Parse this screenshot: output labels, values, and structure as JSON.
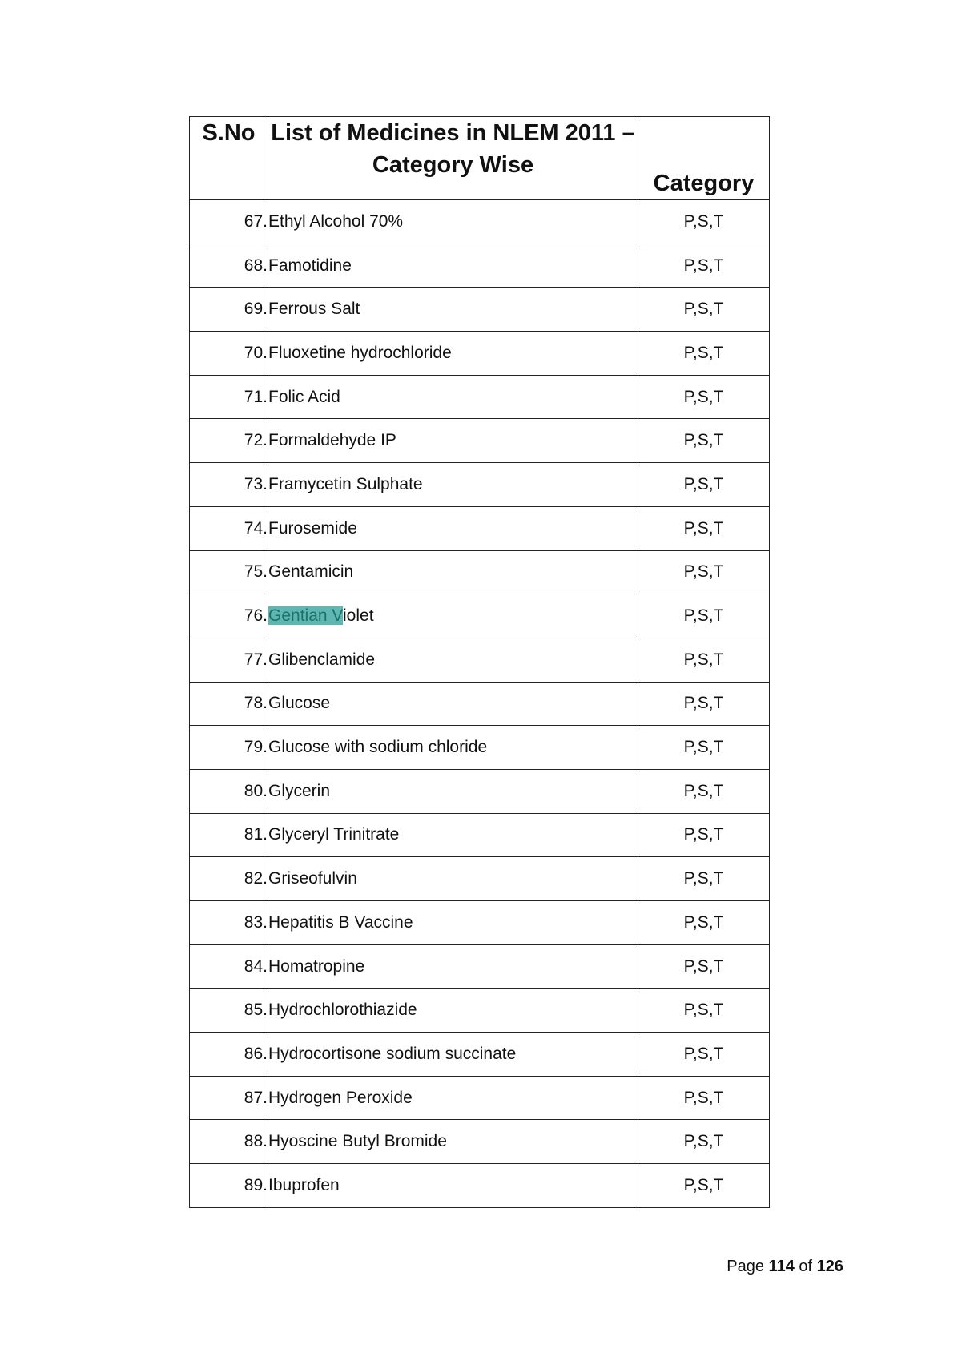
{
  "table": {
    "header": {
      "sno": "S.No",
      "name_line1": "List of Medicines in NLEM 2011 –",
      "name_line2": "Category Wise",
      "category": "Category"
    },
    "rows": [
      {
        "sno": "67.",
        "name": "Ethyl Alcohol 70%",
        "category": "P,S,T"
      },
      {
        "sno": "68.",
        "name": "Famotidine",
        "category": "P,S,T"
      },
      {
        "sno": "69.",
        "name": "Ferrous Salt",
        "category": "P,S,T"
      },
      {
        "sno": "70.",
        "name": "Fluoxetine hydrochloride",
        "category": "P,S,T"
      },
      {
        "sno": "71.",
        "name": "Folic Acid",
        "category": "P,S,T"
      },
      {
        "sno": "72.",
        "name": "Formaldehyde IP",
        "category": "P,S,T"
      },
      {
        "sno": "73.",
        "name": "Framycetin Sulphate",
        "category": "P,S,T"
      },
      {
        "sno": "74.",
        "name": "Furosemide",
        "category": "P,S,T"
      },
      {
        "sno": "75.",
        "name": "Gentamicin",
        "category": "P,S,T"
      },
      {
        "sno": "76.",
        "name": "Gentian Violet",
        "name_highlight": "Gentian V",
        "name_rest": "iolet",
        "category": "P,S,T"
      },
      {
        "sno": "77.",
        "name": "Glibenclamide",
        "category": "P,S,T"
      },
      {
        "sno": "78.",
        "name": "Glucose",
        "category": "P,S,T"
      },
      {
        "sno": "79.",
        "name": "Glucose with sodium chloride",
        "category": "P,S,T"
      },
      {
        "sno": "80.",
        "name": "Glycerin",
        "category": "P,S,T"
      },
      {
        "sno": "81.",
        "name": "Glyceryl Trinitrate",
        "category": "P,S,T"
      },
      {
        "sno": "82.",
        "name": "Griseofulvin",
        "category": "P,S,T"
      },
      {
        "sno": "83.",
        "name": "Hepatitis B Vaccine",
        "category": "P,S,T"
      },
      {
        "sno": "84.",
        "name": "Homatropine",
        "category": "P,S,T"
      },
      {
        "sno": "85.",
        "name": "Hydrochlorothiazide",
        "category": "P,S,T"
      },
      {
        "sno": "86.",
        "name": "Hydrocortisone sodium succinate",
        "category": "P,S,T"
      },
      {
        "sno": "87.",
        "name": "Hydrogen Peroxide",
        "category": "P,S,T"
      },
      {
        "sno": "88.",
        "name": "Hyoscine Butyl Bromide",
        "category": "P,S,T"
      },
      {
        "sno": "89.",
        "name": "Ibuprofen",
        "category": "P,S,T"
      }
    ]
  },
  "footer": {
    "page_prefix": "Page",
    "page_current": "114",
    "page_of": "of",
    "page_total": "126"
  },
  "colors": {
    "highlight": "#5fb7b1",
    "highlight_text": "#1f6f6a"
  }
}
